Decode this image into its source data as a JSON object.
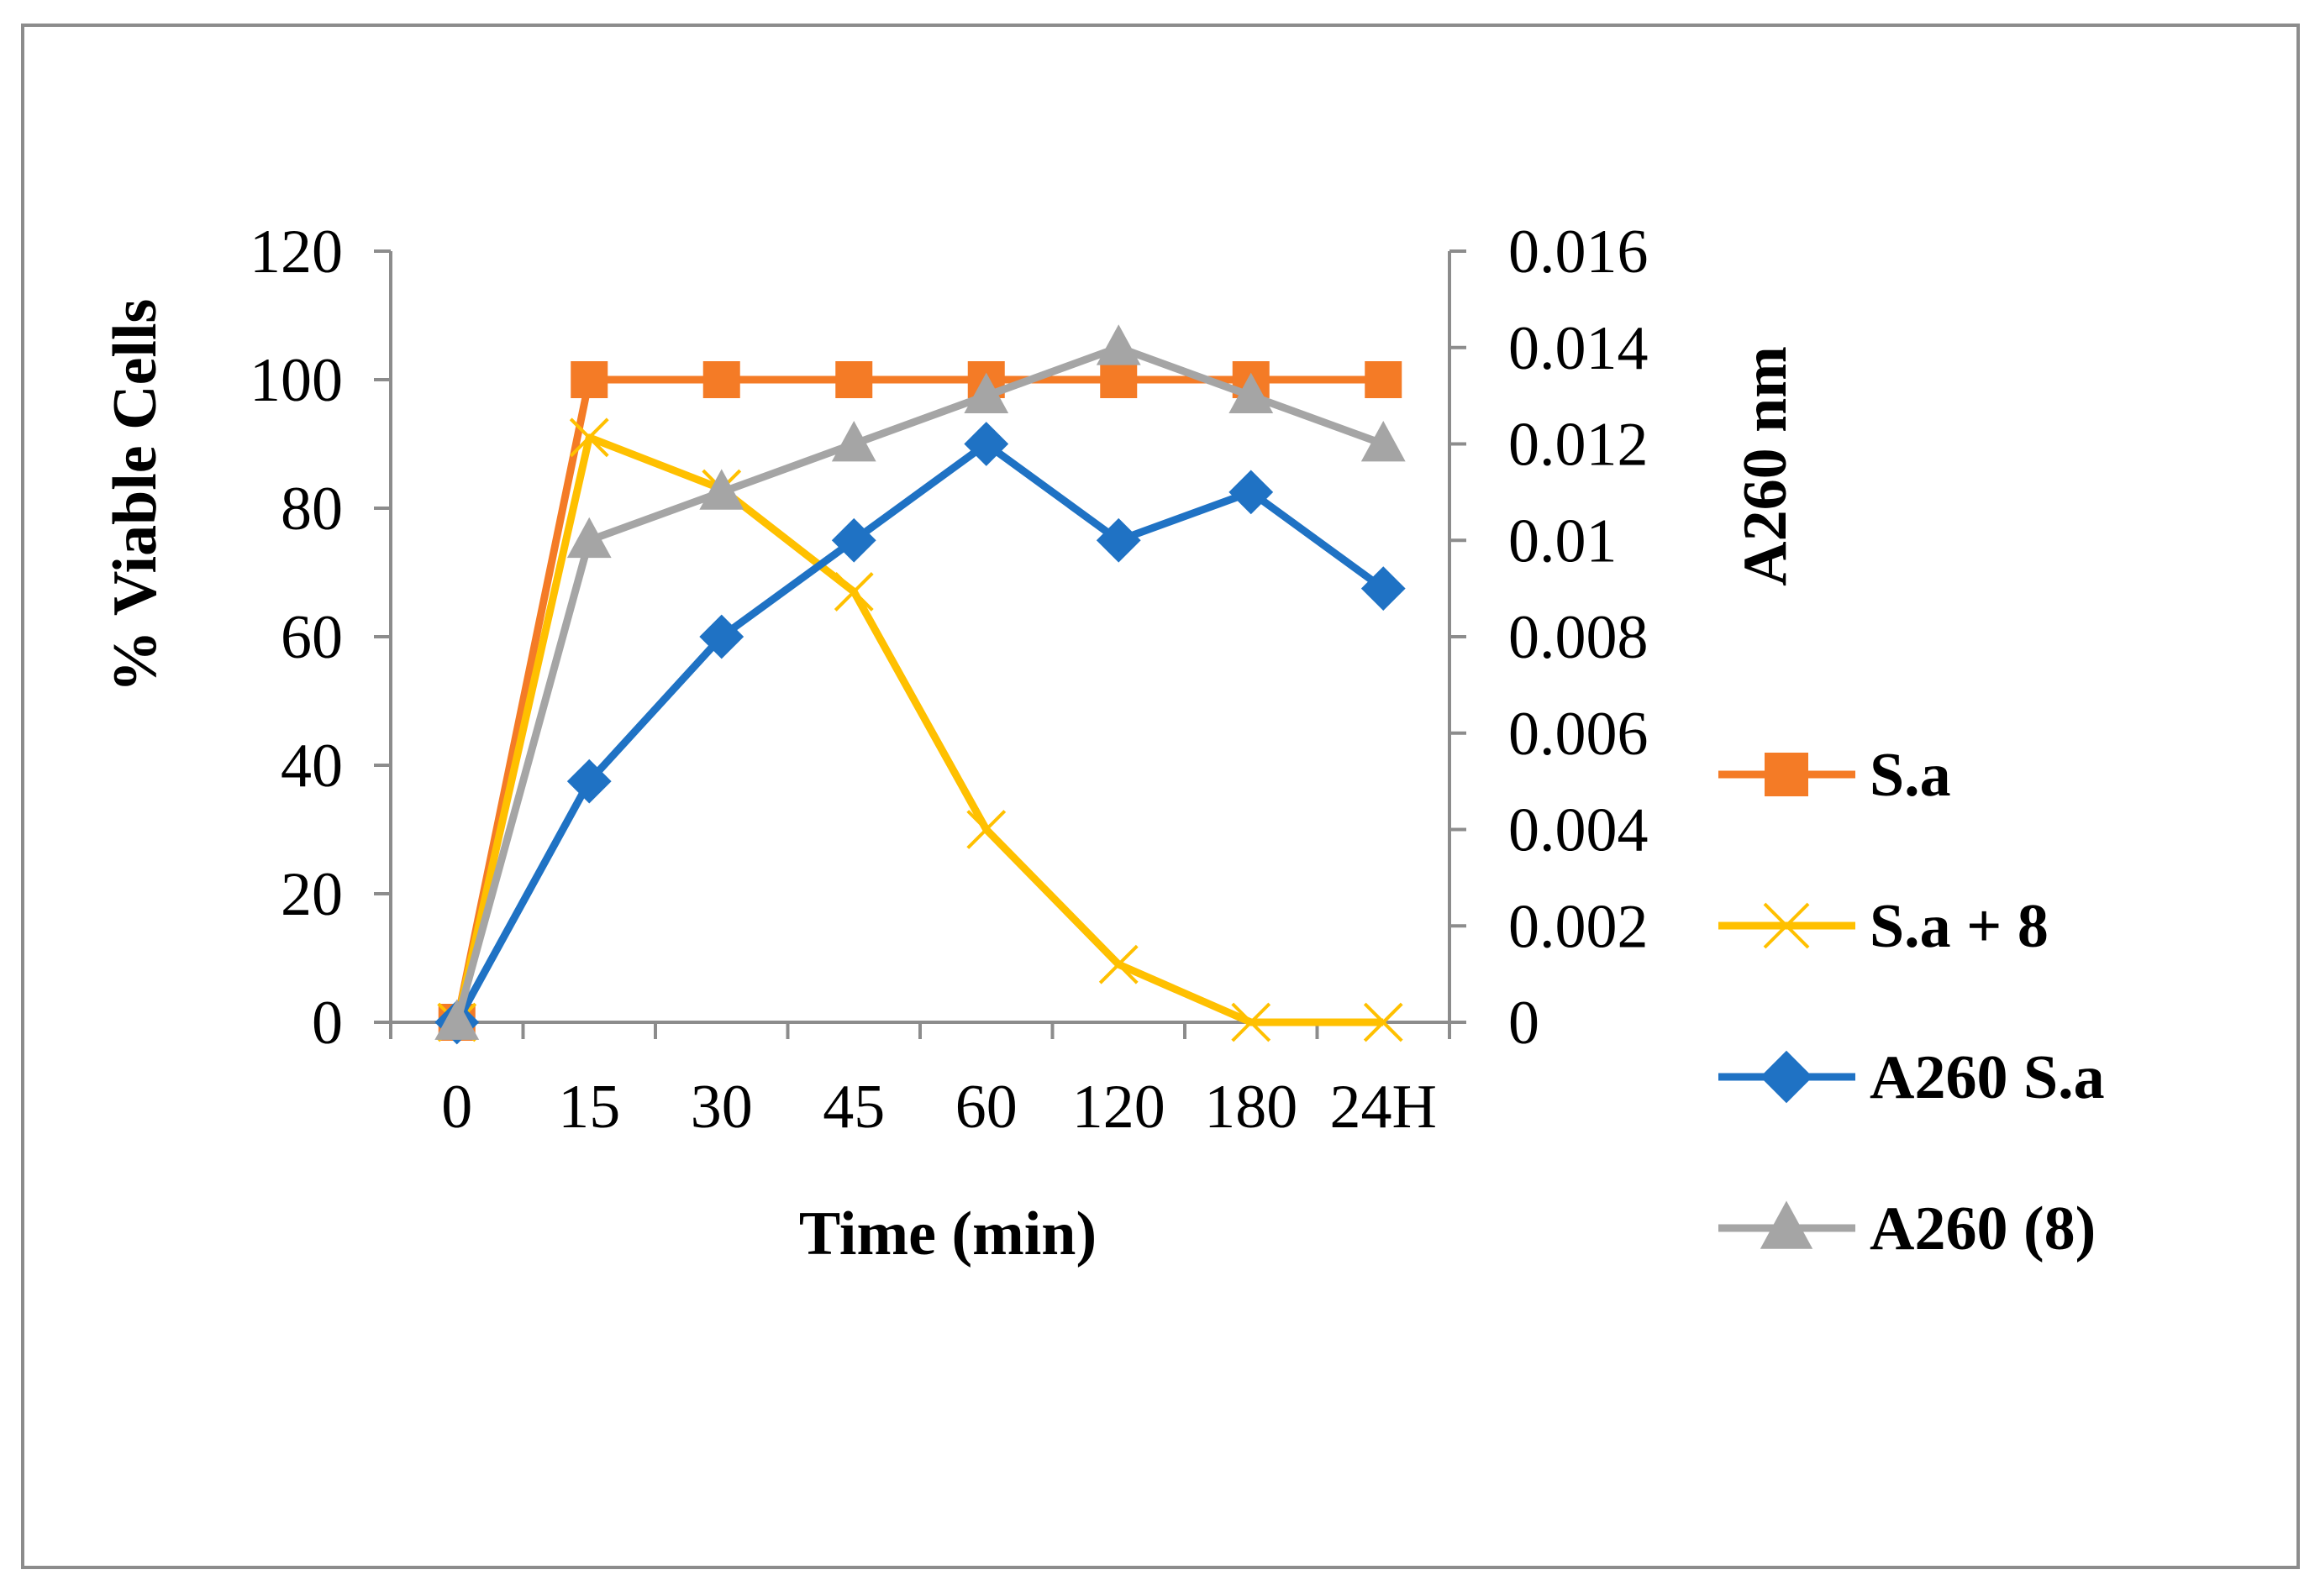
{
  "chart_data": {
    "type": "line",
    "title": "",
    "categories": [
      "0",
      "15",
      "30",
      "45",
      "60",
      "120",
      "180",
      "24H"
    ],
    "xlabel": "Time  (min)",
    "ylabel": "% Viable Cells",
    "ylabel_right": "A260 nm",
    "ylim": [
      0,
      120
    ],
    "yticks": [
      "0",
      "20",
      "40",
      "60",
      "80",
      "100",
      "120"
    ],
    "ylim_right": [
      0,
      0.016
    ],
    "yticks_right": [
      "0",
      "0.002",
      "0.004",
      "0.006",
      "0.008",
      "0.01",
      "0.012",
      "0.014",
      "0.016"
    ],
    "grid": false,
    "legend_position": "right",
    "series": [
      {
        "name": "S.a",
        "axis": "left",
        "color": "#F47B26",
        "marker": "square",
        "values": [
          0,
          100,
          100,
          100,
          100,
          100,
          100,
          100
        ]
      },
      {
        "name": "S.a + 8",
        "axis": "left",
        "color": "#FFC000",
        "marker": "x",
        "values": [
          0,
          91,
          83,
          67,
          30,
          9,
          0,
          0
        ]
      },
      {
        "name": "A260 S.a",
        "axis": "right",
        "color": "#1F72C4",
        "marker": "diamond",
        "values": [
          0,
          0.005,
          0.008,
          0.01,
          0.012,
          0.01,
          0.011,
          0.009
        ]
      },
      {
        "name": "A260 (8)",
        "axis": "right",
        "color": "#A5A5A5",
        "marker": "triangle",
        "values": [
          0,
          0.01,
          0.011,
          0.012,
          0.013,
          0.014,
          0.013,
          0.012
        ]
      }
    ]
  }
}
